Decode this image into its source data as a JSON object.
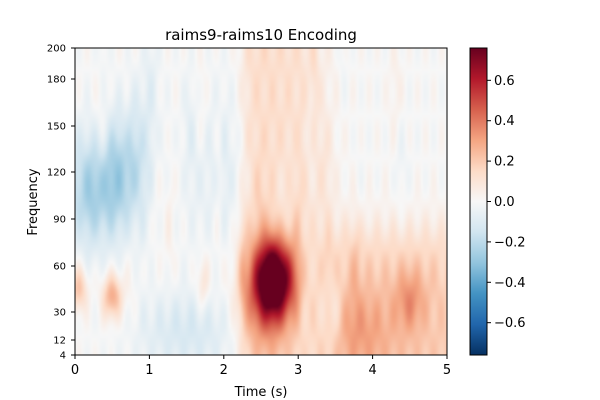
{
  "chart_data": {
    "type": "heatmap",
    "title": "raims9-raims10 Encoding",
    "xlabel": "Time (s)",
    "ylabel": "Frequency",
    "xlim": [
      0,
      5
    ],
    "ylim": [
      4,
      200
    ],
    "x_ticks": [
      0,
      1,
      2,
      3,
      4,
      5
    ],
    "y_ticks": [
      4,
      12,
      30,
      60,
      90,
      120,
      150,
      180,
      200
    ],
    "colorbar": {
      "min": -0.76,
      "max": 0.76,
      "ticks": [
        "0.6",
        "0.4",
        "0.2",
        "0.0",
        "−0.2",
        "−0.4",
        "−0.6"
      ],
      "tick_values": [
        0.6,
        0.4,
        0.2,
        0.0,
        -0.2,
        -0.4,
        -0.6
      ],
      "colormap": "RdBu_r"
    },
    "features": [
      {
        "label": "strong positive burst",
        "t": [
          2.35,
          3.0
        ],
        "f": [
          25,
          75
        ],
        "peak": 0.74
      },
      {
        "label": "positive onset band",
        "t": [
          2.25,
          3.3
        ],
        "f": [
          4,
          200
        ],
        "mean": 0.18
      },
      {
        "label": "late positive activity",
        "t": [
          3.5,
          5.0
        ],
        "f": [
          4,
          80
        ],
        "mean": 0.2
      },
      {
        "label": "early negative band",
        "t": [
          0.1,
          0.9
        ],
        "f": [
          80,
          150
        ],
        "peak": -0.35
      },
      {
        "label": "low-frequency negative",
        "t": [
          1.0,
          2.2
        ],
        "f": [
          4,
          40
        ],
        "mean": -0.12
      },
      {
        "label": "early positive low freq",
        "t": [
          0.0,
          0.6
        ],
        "f": [
          25,
          55
        ],
        "peak": 0.3
      }
    ]
  }
}
